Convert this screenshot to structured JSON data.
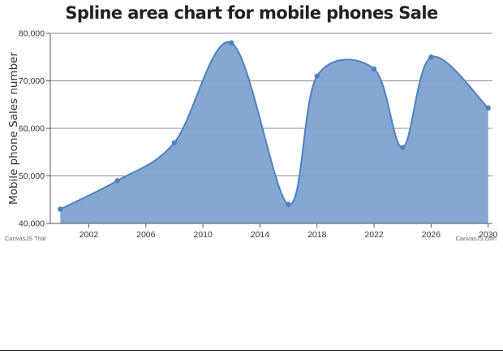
{
  "chart_data": {
    "type": "area",
    "title": "Spline area chart for mobile phones Sale",
    "xlabel": "",
    "ylabel": "Mobile phone Sales number",
    "xlim": [
      1999.3,
      2030.3
    ],
    "ylim": [
      40000,
      80000
    ],
    "x_ticks": [
      2002,
      2006,
      2010,
      2014,
      2018,
      2022,
      2026,
      2030
    ],
    "y_ticks": [
      40000,
      50000,
      60000,
      70000,
      80000
    ],
    "y_tick_labels": [
      "40,000",
      "50,000",
      "60,000",
      "70,000",
      "80,000"
    ],
    "grid": true,
    "legend": "none",
    "series": [
      {
        "x": [
          2000,
          2004,
          2008,
          2012,
          2016,
          2018,
          2022,
          2024,
          2026,
          2030
        ],
        "y": [
          43000,
          49000,
          57000,
          78000,
          44000,
          71000,
          72500,
          56000,
          75000,
          64300
        ]
      }
    ],
    "colors": {
      "fill": "#7ea3d1",
      "line": "#4f81bd",
      "marker": "#4f81bd",
      "grid": "#8c8c8c"
    }
  },
  "credits": {
    "left": "CanvasJS Trial",
    "right": "CanvasJS.com"
  }
}
